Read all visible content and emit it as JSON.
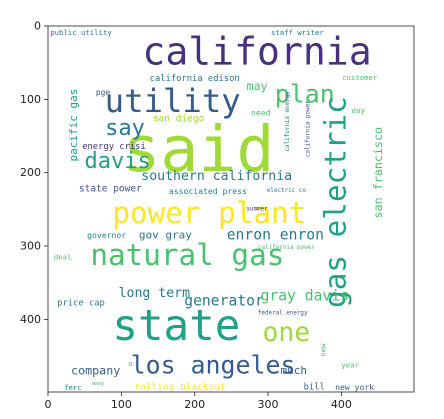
{
  "chart_data": {
    "type": "word_cloud",
    "xlim": [
      0,
      499
    ],
    "ylim": [
      499,
      0
    ],
    "x_ticks": [
      0,
      100,
      200,
      300,
      400
    ],
    "y_ticks": [
      0,
      100,
      200,
      300,
      400
    ],
    "background": "#ffffff",
    "words": [
      {
        "text": "california",
        "x": 285,
        "y": 35,
        "size": 52,
        "rotate": 0,
        "color": "#46327e"
      },
      {
        "text": "said",
        "x": 205,
        "y": 168,
        "size": 86,
        "rotate": 0,
        "color": "#a0da39"
      },
      {
        "text": "utility",
        "x": 170,
        "y": 102,
        "size": 44,
        "rotate": 0,
        "color": "#365c8d"
      },
      {
        "text": "plan",
        "x": 350,
        "y": 93,
        "size": 34,
        "rotate": 0,
        "color": "#4ac16d"
      },
      {
        "text": "say",
        "x": 105,
        "y": 140,
        "size": 30,
        "rotate": 0,
        "color": "#2a788e"
      },
      {
        "text": "davis",
        "x": 95,
        "y": 185,
        "size": 30,
        "rotate": 0,
        "color": "#1fa187"
      },
      {
        "text": "southern california",
        "x": 230,
        "y": 205,
        "size": 18,
        "rotate": 0,
        "color": "#2a788e"
      },
      {
        "text": "power plant",
        "x": 220,
        "y": 255,
        "size": 40,
        "rotate": 0,
        "color": "#fde725"
      },
      {
        "text": "gas electric",
        "x": 392,
        "y": 240,
        "size": 40,
        "rotate": -90,
        "color": "#1fa187"
      },
      {
        "text": "san francisco",
        "x": 450,
        "y": 200,
        "size": 16,
        "rotate": -90,
        "color": "#4ac16d"
      },
      {
        "text": "natural gas",
        "x": 190,
        "y": 312,
        "size": 40,
        "rotate": 0,
        "color": "#4ac16d"
      },
      {
        "text": "state",
        "x": 175,
        "y": 410,
        "size": 58,
        "rotate": 0,
        "color": "#1fa187"
      },
      {
        "text": "one",
        "x": 325,
        "y": 418,
        "size": 36,
        "rotate": 0,
        "color": "#a0da39"
      },
      {
        "text": "los angeles",
        "x": 225,
        "y": 462,
        "size": 34,
        "rotate": 0,
        "color": "#365c8d"
      },
      {
        "text": "public utility",
        "x": 45,
        "y": 9,
        "size": 10,
        "rotate": 0,
        "color": "#2a788e"
      },
      {
        "text": "staff writer",
        "x": 340,
        "y": 9,
        "size": 10,
        "rotate": 0,
        "color": "#277f8e"
      },
      {
        "text": "customer",
        "x": 425,
        "y": 70,
        "size": 10,
        "rotate": 0,
        "color": "#4ac16d"
      },
      {
        "text": "california edison",
        "x": 200,
        "y": 72,
        "size": 12,
        "rotate": 0,
        "color": "#2a788e"
      },
      {
        "text": "may",
        "x": 285,
        "y": 82,
        "size": 16,
        "rotate": 0,
        "color": "#4ac16d"
      },
      {
        "text": "pge",
        "x": 75,
        "y": 90,
        "size": 11,
        "rotate": 0,
        "color": "#365c8d"
      },
      {
        "text": "pacific gas",
        "x": 35,
        "y": 135,
        "size": 15,
        "rotate": -90,
        "color": "#1fa187"
      },
      {
        "text": "california energy",
        "x": 327,
        "y": 130,
        "size": 8,
        "rotate": -90,
        "color": "#277f8e"
      },
      {
        "text": "day",
        "x": 423,
        "y": 115,
        "size": 10,
        "rotate": 0,
        "color": "#4ac16d"
      },
      {
        "text": "san diego",
        "x": 178,
        "y": 127,
        "size": 13,
        "rotate": 0,
        "color": "#a0da39"
      },
      {
        "text": "need",
        "x": 290,
        "y": 118,
        "size": 11,
        "rotate": 0,
        "color": "#4ac16d"
      },
      {
        "text": "energy crisi",
        "x": 90,
        "y": 165,
        "size": 12,
        "rotate": 0,
        "color": "#46327e"
      },
      {
        "text": "california power",
        "x": 355,
        "y": 140,
        "size": 8,
        "rotate": -90,
        "color": "#365c8d"
      },
      {
        "text": "state power",
        "x": 85,
        "y": 222,
        "size": 13,
        "rotate": 0,
        "color": "#365c8d"
      },
      {
        "text": "associated press",
        "x": 218,
        "y": 225,
        "size": 11,
        "rotate": 0,
        "color": "#277f8e"
      },
      {
        "text": "electric co",
        "x": 325,
        "y": 225,
        "size": 8,
        "rotate": 0,
        "color": "#277f8e"
      },
      {
        "text": "summer",
        "x": 285,
        "y": 250,
        "size": 8,
        "rotate": 0,
        "color": "#46327e"
      },
      {
        "text": "gov gray",
        "x": 160,
        "y": 285,
        "size": 15,
        "rotate": 0,
        "color": "#2a788e"
      },
      {
        "text": "enron enron",
        "x": 310,
        "y": 285,
        "size": 20,
        "rotate": 0,
        "color": "#2a788e"
      },
      {
        "text": "governor",
        "x": 80,
        "y": 285,
        "size": 11,
        "rotate": 0,
        "color": "#277f8e"
      },
      {
        "text": "california power",
        "x": 325,
        "y": 303,
        "size": 8,
        "rotate": 0,
        "color": "#4ac16d"
      },
      {
        "text": "deal",
        "x": 20,
        "y": 315,
        "size": 10,
        "rotate": 0,
        "color": "#4ac16d"
      },
      {
        "text": "long term",
        "x": 145,
        "y": 365,
        "size": 18,
        "rotate": 0,
        "color": "#2a788e"
      },
      {
        "text": "generator",
        "x": 240,
        "y": 375,
        "size": 20,
        "rotate": 0,
        "color": "#2a788e"
      },
      {
        "text": "gray davis",
        "x": 350,
        "y": 368,
        "size": 20,
        "rotate": 0,
        "color": "#4ac16d"
      },
      {
        "text": "price cap",
        "x": 45,
        "y": 378,
        "size": 12,
        "rotate": 0,
        "color": "#2a788e"
      },
      {
        "text": "federal energy",
        "x": 320,
        "y": 392,
        "size": 8,
        "rotate": 0,
        "color": "#365c8d"
      },
      {
        "text": "company",
        "x": 65,
        "y": 470,
        "size": 16,
        "rotate": 0,
        "color": "#365c8d"
      },
      {
        "text": "u",
        "x": 112,
        "y": 460,
        "size": 10,
        "rotate": 0,
        "color": "#4ac16d"
      },
      {
        "text": "much",
        "x": 335,
        "y": 470,
        "size": 15,
        "rotate": 0,
        "color": "#365c8d"
      },
      {
        "text": "year",
        "x": 412,
        "y": 462,
        "size": 10,
        "rotate": 0,
        "color": "#4ac16d"
      },
      {
        "text": "new",
        "x": 375,
        "y": 442,
        "size": 10,
        "rotate": -90,
        "color": "#4ac16d"
      },
      {
        "text": "ferc",
        "x": 34,
        "y": 493,
        "size": 10,
        "rotate": 0,
        "color": "#277f8e"
      },
      {
        "text": "many",
        "x": 68,
        "y": 488,
        "size": 7,
        "rotate": 0,
        "color": "#4ac16d"
      },
      {
        "text": "rolling blackout",
        "x": 180,
        "y": 493,
        "size": 13,
        "rotate": 0,
        "color": "#fde725"
      },
      {
        "text": "bill",
        "x": 363,
        "y": 493,
        "size": 12,
        "rotate": 0,
        "color": "#365c8d"
      },
      {
        "text": "new york",
        "x": 418,
        "y": 492,
        "size": 11,
        "rotate": 0,
        "color": "#365c8d"
      }
    ]
  }
}
